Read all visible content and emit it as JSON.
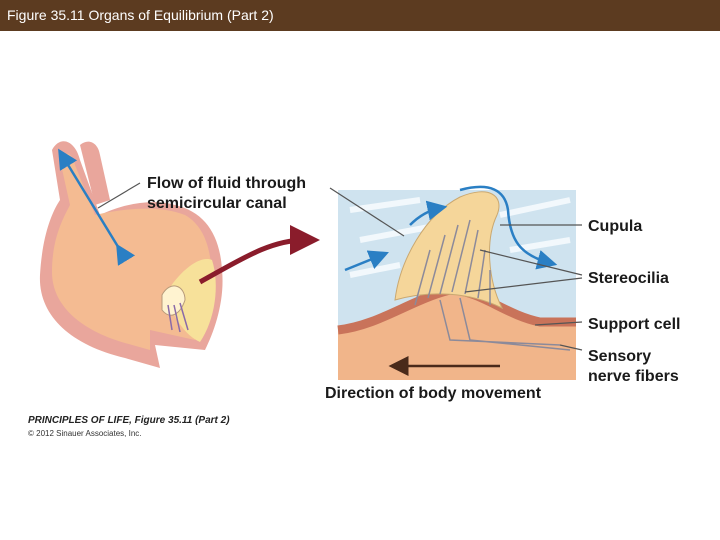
{
  "header": {
    "title": "Figure 35.11  Organs of Equilibrium (Part 2)"
  },
  "labels": {
    "flow": [
      "Flow of fluid through",
      "semicircular canal"
    ],
    "cupula": "Cupula",
    "stereocilia": "Stereocilia",
    "support_cell": "Support cell",
    "sensory": [
      "Sensory",
      "nerve fibers"
    ],
    "direction": "Direction of body movement"
  },
  "credit": {
    "source": "PRINCIPLES OF LIFE, Figure 35.11 (Part 2)",
    "copyright": "© 2012 Sinauer Associates, Inc."
  }
}
